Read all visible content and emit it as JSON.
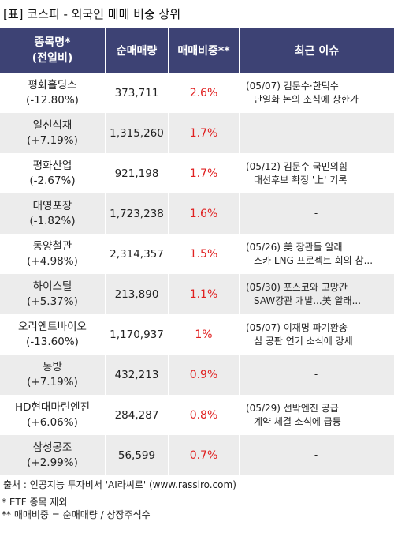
{
  "title": "[표] 코스피 - 외국인 매매 비중 상위",
  "table": {
    "headers": {
      "name_line1": "종목명*",
      "name_line2": "(전일비)",
      "volume": "순매매량",
      "ratio": "매매비중**",
      "issue": "최근 이슈"
    },
    "rows": [
      {
        "name": "평화홀딩스",
        "change": "(-12.80%)",
        "volume": "373,711",
        "ratio": "2.6%",
        "issue1": "(05/07) 김문수·한덕수",
        "issue2": "단일화 논의 소식에 상한가"
      },
      {
        "name": "일신석재",
        "change": "(+7.19%)",
        "volume": "1,315,260",
        "ratio": "1.7%",
        "issue1": "-",
        "issue2": ""
      },
      {
        "name": "평화산업",
        "change": "(-2.67%)",
        "volume": "921,198",
        "ratio": "1.7%",
        "issue1": "(05/12) 김문수 국민의힘",
        "issue2": "대선후보 확정 '上' 기록"
      },
      {
        "name": "대영포장",
        "change": "(-1.82%)",
        "volume": "1,723,238",
        "ratio": "1.6%",
        "issue1": "-",
        "issue2": ""
      },
      {
        "name": "동양철관",
        "change": "(+4.98%)",
        "volume": "2,314,357",
        "ratio": "1.5%",
        "issue1": "(05/26) 美 장관들 알래",
        "issue2": "스카 LNG 프로젝트 회의 참..."
      },
      {
        "name": "하이스틸",
        "change": "(+5.37%)",
        "volume": "213,890",
        "ratio": "1.1%",
        "issue1": "(05/30) 포스코와 고망간",
        "issue2": "SAW강관 개발...美 알래..."
      },
      {
        "name": "오리엔트바이오",
        "change": "(-13.60%)",
        "volume": "1,170,937",
        "ratio": "1%",
        "issue1": "(05/07) 이재명 파기환송",
        "issue2": "심 공판 연기 소식에 강세"
      },
      {
        "name": "동방",
        "change": "(+7.19%)",
        "volume": "432,213",
        "ratio": "0.9%",
        "issue1": "-",
        "issue2": ""
      },
      {
        "name": "HD현대마린엔진",
        "change": "(+6.06%)",
        "volume": "284,287",
        "ratio": "0.8%",
        "issue1": "(05/29) 선박엔진 공급",
        "issue2": "계약 체결 소식에 급등"
      },
      {
        "name": "삼성공조",
        "change": "(+2.99%)",
        "volume": "56,599",
        "ratio": "0.7%",
        "issue1": "-",
        "issue2": ""
      }
    ]
  },
  "footer": {
    "source": "출처 : 인공지능 투자비서 'AI라씨로' (www.rassiro.com)",
    "note1": "* ETF 종목 제외",
    "note2": "** 매매비중 = 순매매량 / 상장주식수"
  },
  "colors": {
    "header_bg": "#3d4274",
    "ratio_text": "#e02020",
    "row_alt_bg": "#ececec"
  }
}
